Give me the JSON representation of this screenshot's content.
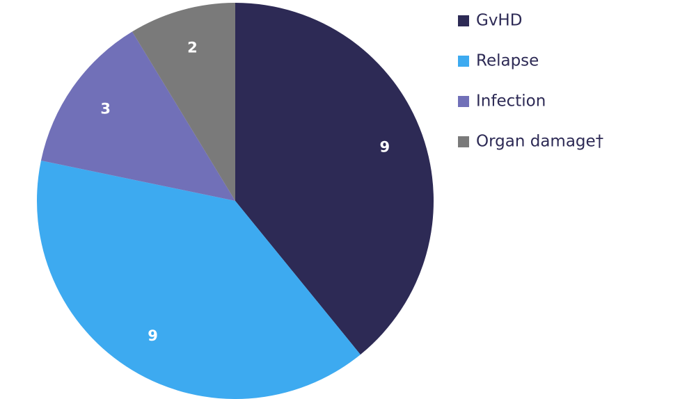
{
  "chart_data": {
    "type": "pie",
    "categories": [
      "GvHD",
      "Relapse",
      "Infection",
      "Organ damage†"
    ],
    "values": [
      9,
      9,
      3,
      2
    ],
    "colors": [
      "#2d2a55",
      "#3daaf0",
      "#7170b8",
      "#7a7a7a"
    ],
    "legend": "right"
  }
}
